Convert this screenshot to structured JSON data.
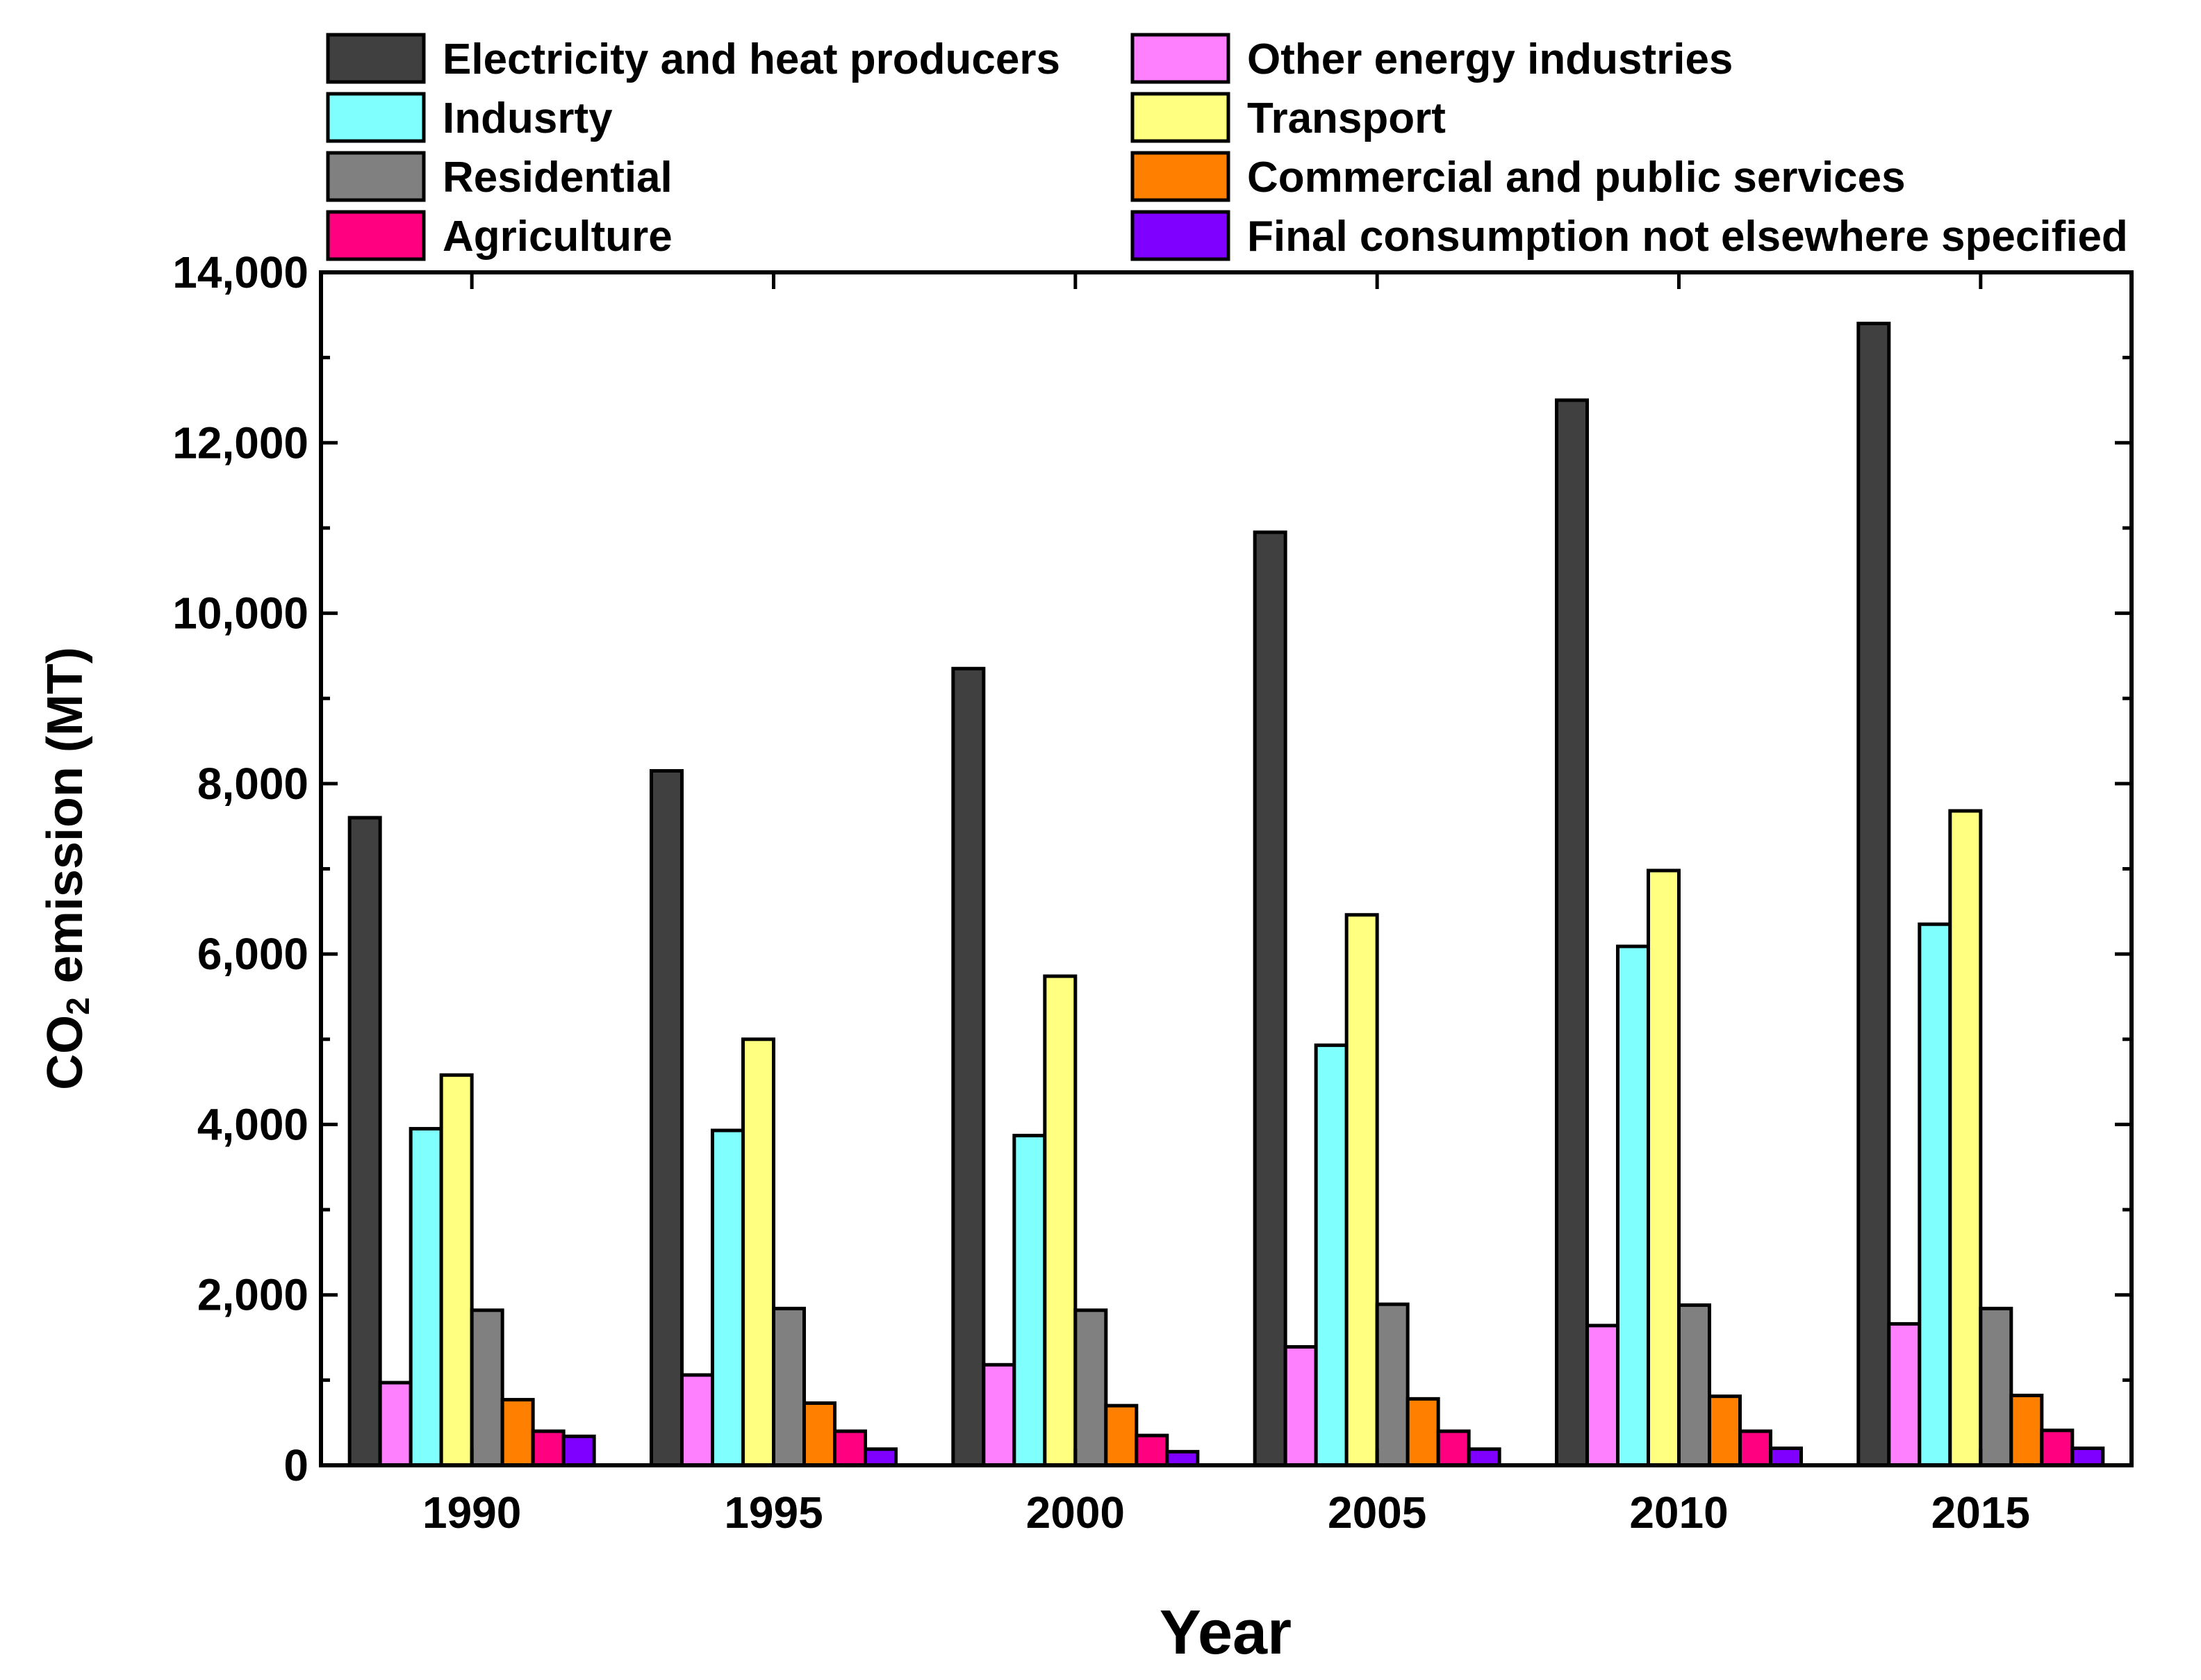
{
  "chart_data": {
    "type": "bar",
    "title": "",
    "xlabel": "Year",
    "ylabel": {
      "prefix": "CO",
      "subscript": "2",
      "suffix": " emission (MT)"
    },
    "categories": [
      "1990",
      "1995",
      "2000",
      "2005",
      "2010",
      "2015"
    ],
    "ylim": [
      0,
      14000
    ],
    "yticks": [
      0,
      2000,
      4000,
      6000,
      8000,
      10000,
      12000,
      14000
    ],
    "ytick_labels": [
      "0",
      "2,000",
      "4,000",
      "6,000",
      "8,000",
      "10,000",
      "12,000",
      "14,000"
    ],
    "grid": false,
    "legend_position": "top",
    "series": [
      {
        "name": "Electricity and heat producers",
        "color": "#404040",
        "values": [
          7600,
          8150,
          9350,
          10950,
          12500,
          13400
        ]
      },
      {
        "name": "Other energy industries",
        "color": "#ff80ff",
        "values": [
          970,
          1060,
          1180,
          1390,
          1640,
          1660
        ]
      },
      {
        "name": "Indusrty",
        "color": "#80ffff",
        "values": [
          3950,
          3930,
          3870,
          4930,
          6090,
          6350
        ]
      },
      {
        "name": "Transport",
        "color": "#ffff80",
        "values": [
          4580,
          5000,
          5740,
          6460,
          6980,
          7680
        ]
      },
      {
        "name": "Residential",
        "color": "#808080",
        "values": [
          1820,
          1840,
          1820,
          1890,
          1880,
          1840
        ]
      },
      {
        "name": "Commercial and public services",
        "color": "#ff8000",
        "values": [
          770,
          730,
          700,
          780,
          810,
          820
        ]
      },
      {
        "name": "Agriculture",
        "color": "#ff0080",
        "values": [
          400,
          400,
          350,
          400,
          400,
          410
        ]
      },
      {
        "name": "Final consumption not elsewhere specified",
        "color": "#8000ff",
        "values": [
          340,
          190,
          160,
          190,
          200,
          200
        ]
      }
    ],
    "legend": {
      "columns": [
        [
          "Electricity and heat producers",
          "Indusrty",
          "Residential",
          "Agriculture"
        ],
        [
          "Other energy industries",
          "Transport",
          "Commercial and public services",
          "Final consumption not elsewhere specified"
        ]
      ]
    }
  }
}
